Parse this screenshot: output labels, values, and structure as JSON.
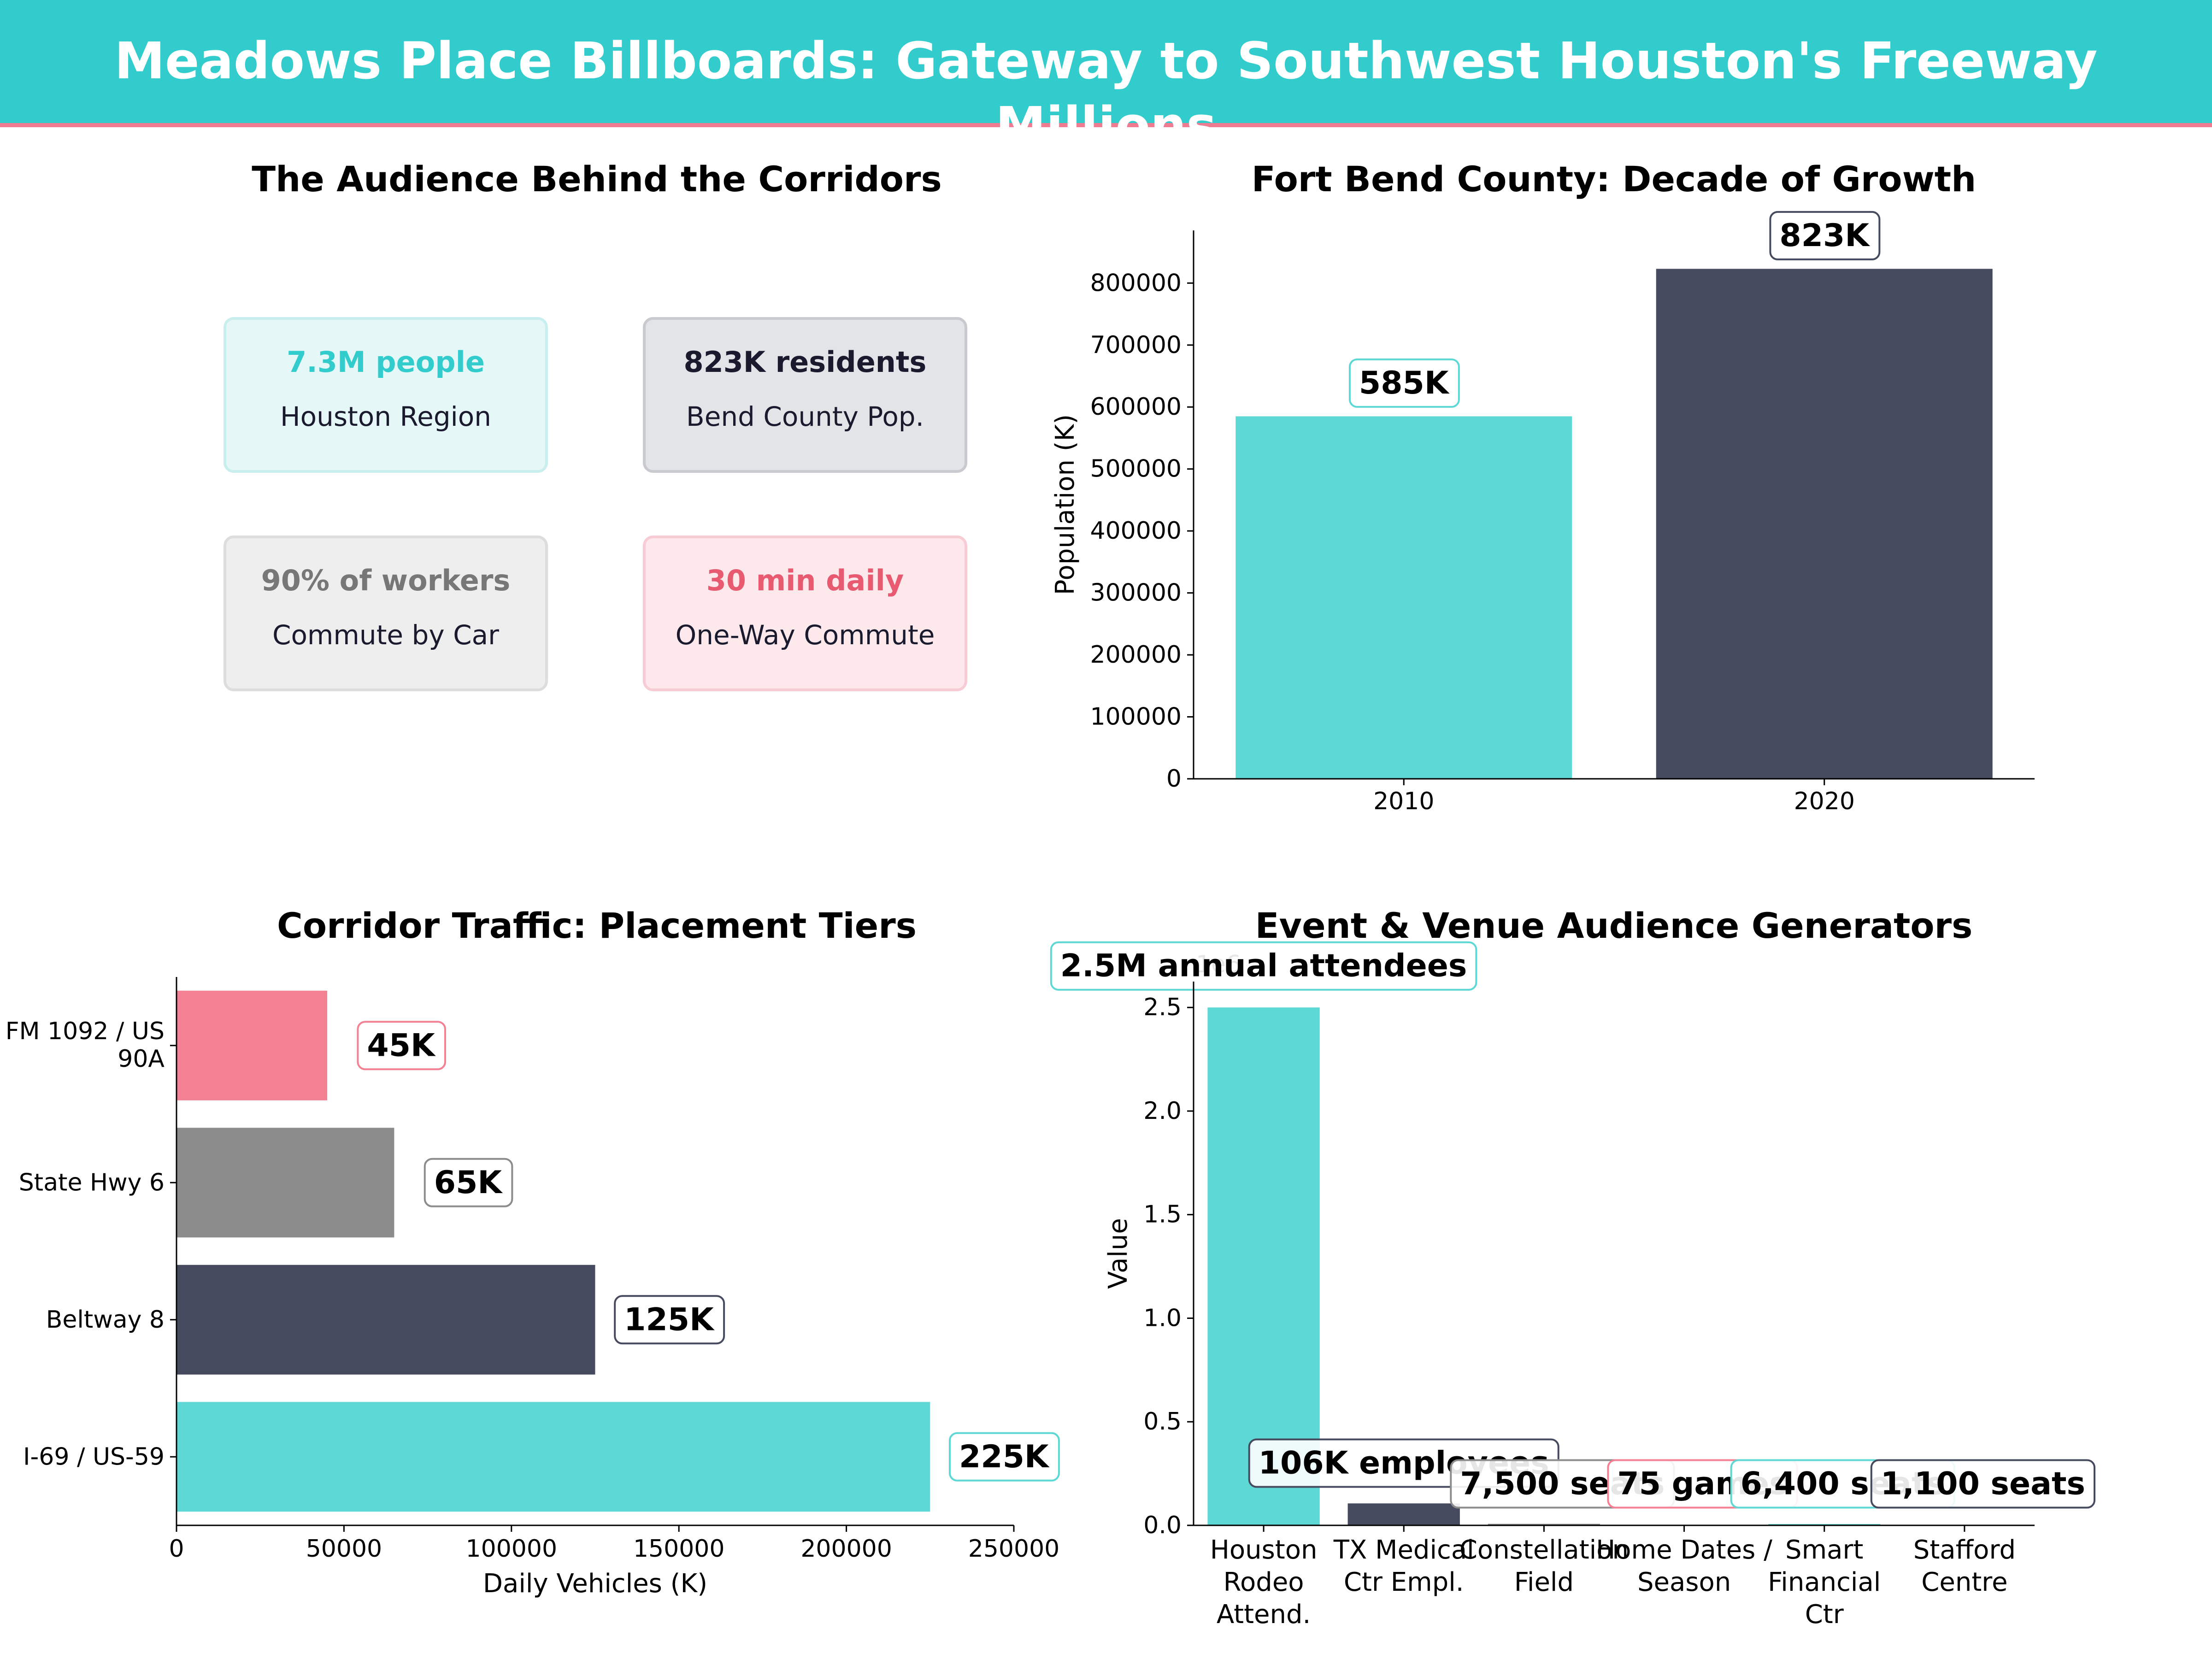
{
  "header": {
    "title": "Meadows Place Billboards: Gateway to Southwest Houston's Freeway Millions",
    "background": "#33CCCC",
    "accent": "#F07C91"
  },
  "audience": {
    "title": "The Audience Behind the Corridors",
    "cards": [
      {
        "value": "7.3M people",
        "label": "Houston Region",
        "color": "#33CCCC",
        "fill": "#E6F7F7",
        "border": "#C9EEEE"
      },
      {
        "value": "823K residents",
        "label": "Bend County Pop.",
        "color": "#1A1A2E",
        "fill": "#E3E4E8",
        "border": "#C9CACF"
      },
      {
        "value": "90% of workers",
        "label": "Commute by Car",
        "color": "#777777",
        "fill": "#EEEEEE",
        "border": "#DDDDDD"
      },
      {
        "value": "30 min daily",
        "label": "One-Way Commute",
        "color": "#E85A70",
        "fill": "#FDE8EC",
        "border": "#F8CCD5"
      }
    ]
  },
  "chart_data": [
    {
      "type": "bar",
      "title": "Fort Bend County: Decade of Growth",
      "categories": [
        "2010",
        "2020"
      ],
      "values": [
        585000,
        823000
      ],
      "labels": [
        "585K",
        "823K"
      ],
      "colors": [
        "#5DD8D5",
        "#464A5E"
      ],
      "ylabel": "Population (K)",
      "ylim": [
        0,
        885000
      ],
      "yticks": [
        0,
        100000,
        200000,
        300000,
        400000,
        500000,
        600000,
        700000,
        800000
      ],
      "grid": false
    },
    {
      "type": "bar",
      "orientation": "horizontal",
      "title": "Corridor Traffic: Placement Tiers",
      "categories": [
        "I-69 / US-59",
        "Beltway 8",
        "State Hwy 6",
        "FM 1092 / US 90A"
      ],
      "values": [
        225000,
        125000,
        65000,
        45000
      ],
      "labels": [
        "225K",
        "125K",
        "65K",
        "45K"
      ],
      "colors": [
        "#5DD8D5",
        "#464A5E",
        "#8C8C8C",
        "#F48094"
      ],
      "xlabel": "Daily Vehicles (K)",
      "xlim": [
        0,
        250000
      ],
      "xticks": [
        0,
        50000,
        100000,
        150000,
        200000,
        250000
      ],
      "grid": false
    },
    {
      "type": "bar",
      "title": "Event & Venue Audience Generators",
      "categories": [
        "Houston Rodeo Attend.",
        "TX Medical Ctr Empl.",
        "Constellation Field",
        "Home Dates / Season",
        "Smart Financial Ctr",
        "Stafford Centre"
      ],
      "values": [
        2500000,
        106000,
        7500,
        75,
        6400,
        1100
      ],
      "labels": [
        "2.5M annual attendees",
        "106K employees",
        "7,500 seats",
        "75 games",
        "6,400 seats",
        "1,100 seats"
      ],
      "colors": [
        "#5DD8D5",
        "#464A5E",
        "#8C8C8C",
        "#F48094",
        "#5DD8D5",
        "#464A5E"
      ],
      "ylabel": "Value",
      "scale_note": "1e6",
      "ylim": [
        0,
        2625000
      ],
      "yticks": [
        0,
        500000,
        1000000,
        1500000,
        2000000,
        2500000
      ],
      "ytick_labels": [
        "0.0",
        "0.5",
        "1.0",
        "1.5",
        "2.0",
        "2.5"
      ],
      "grid": false
    }
  ]
}
